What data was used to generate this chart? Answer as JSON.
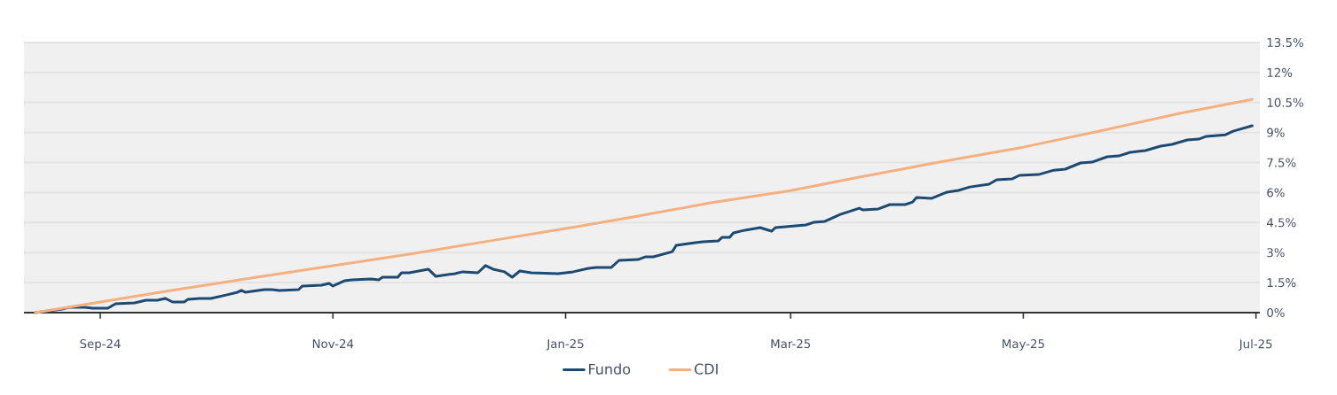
{
  "chart_data": {
    "type": "line",
    "xlim": [
      "2024-08-12",
      "2025-07-02"
    ],
    "ylim": [
      0,
      13.5
    ],
    "xticks": [
      {
        "value": "2024-09-01",
        "label": "Sep-24"
      },
      {
        "value": "2024-11-01",
        "label": "Nov-24"
      },
      {
        "value": "2025-01-01",
        "label": "Jan-25"
      },
      {
        "value": "2025-03-01",
        "label": "Mar-25"
      },
      {
        "value": "2025-05-01",
        "label": "May-25"
      },
      {
        "value": "2025-07-01",
        "label": "Jul-25"
      }
    ],
    "yticks": [
      {
        "value": 0,
        "label": "0%"
      },
      {
        "value": 1.5,
        "label": "1.5%"
      },
      {
        "value": 3,
        "label": "3%"
      },
      {
        "value": 4.5,
        "label": "4.5%"
      },
      {
        "value": 6,
        "label": "6%"
      },
      {
        "value": 7.5,
        "label": "7.5%"
      },
      {
        "value": 9,
        "label": "9%"
      },
      {
        "value": 10.5,
        "label": "10.5%"
      },
      {
        "value": 12,
        "label": "12%"
      },
      {
        "value": 13.5,
        "label": "13.5%"
      }
    ],
    "grid": "y",
    "legend": "bottom",
    "marker": "none",
    "line_style": "solid",
    "series": [
      {
        "name": "Fundo",
        "color": "#1d4a72",
        "x": [
          "2024-08-15",
          "2024-08-22",
          "2024-08-24",
          "2024-08-28",
          "2024-08-30",
          "2024-09-03",
          "2024-09-05",
          "2024-09-10",
          "2024-09-11",
          "2024-09-13",
          "2024-09-16",
          "2024-09-18",
          "2024-09-20",
          "2024-09-23",
          "2024-09-24",
          "2024-09-27",
          "2024-09-30",
          "2024-10-04",
          "2024-10-07",
          "2024-10-08",
          "2024-10-09",
          "2024-10-14",
          "2024-10-16",
          "2024-10-18",
          "2024-10-23",
          "2024-10-24",
          "2024-10-29",
          "2024-10-31",
          "2024-11-01",
          "2024-11-04",
          "2024-11-06",
          "2024-11-11",
          "2024-11-13",
          "2024-11-14",
          "2024-11-18",
          "2024-11-19",
          "2024-11-21",
          "2024-11-26",
          "2024-11-28",
          "2024-12-03",
          "2024-12-05",
          "2024-12-09",
          "2024-12-11",
          "2024-12-13",
          "2024-12-16",
          "2024-12-18",
          "2024-12-20",
          "2024-12-23",
          "2024-12-30",
          "2025-01-03",
          "2025-01-07",
          "2025-01-09",
          "2025-01-13",
          "2025-01-15",
          "2025-01-20",
          "2025-01-22",
          "2025-01-24",
          "2025-01-29",
          "2025-01-30",
          "2025-02-04",
          "2025-02-06",
          "2025-02-10",
          "2025-02-11",
          "2025-02-13",
          "2025-02-14",
          "2025-02-17",
          "2025-02-21",
          "2025-02-24",
          "2025-02-25",
          "2025-03-05",
          "2025-03-07",
          "2025-03-10",
          "2025-03-14",
          "2025-03-19",
          "2025-03-20",
          "2025-03-24",
          "2025-03-27",
          "2025-03-31",
          "2025-04-02",
          "2025-04-03",
          "2025-04-07",
          "2025-04-11",
          "2025-04-14",
          "2025-04-17",
          "2025-04-22",
          "2025-04-24",
          "2025-04-28",
          "2025-04-30",
          "2025-05-05",
          "2025-05-09",
          "2025-05-12",
          "2025-05-16",
          "2025-05-19",
          "2025-05-23",
          "2025-05-26",
          "2025-05-29",
          "2025-06-02",
          "2025-06-06",
          "2025-06-09",
          "2025-06-13",
          "2025-06-16",
          "2025-06-18",
          "2025-06-23",
          "2025-06-25",
          "2025-06-30"
        ],
        "values": [
          0,
          0.18,
          0.27,
          0.27,
          0.22,
          0.22,
          0.44,
          0.49,
          0.53,
          0.62,
          0.62,
          0.71,
          0.53,
          0.53,
          0.66,
          0.71,
          0.71,
          0.88,
          1.02,
          1.11,
          1.02,
          1.15,
          1.15,
          1.11,
          1.15,
          1.33,
          1.37,
          1.46,
          1.33,
          1.59,
          1.64,
          1.68,
          1.64,
          1.77,
          1.77,
          1.99,
          1.99,
          2.17,
          1.81,
          1.95,
          2.04,
          1.99,
          2.35,
          2.17,
          2.04,
          1.77,
          2.08,
          1.99,
          1.95,
          2.04,
          2.21,
          2.26,
          2.26,
          2.61,
          2.65,
          2.79,
          2.79,
          3.05,
          3.36,
          3.5,
          3.54,
          3.58,
          3.76,
          3.76,
          3.98,
          4.12,
          4.25,
          4.07,
          4.25,
          4.38,
          4.51,
          4.56,
          4.91,
          5.22,
          5.13,
          5.18,
          5.4,
          5.4,
          5.53,
          5.75,
          5.71,
          6.02,
          6.11,
          6.28,
          6.42,
          6.64,
          6.68,
          6.86,
          6.9,
          7.12,
          7.17,
          7.48,
          7.52,
          7.79,
          7.83,
          8.01,
          8.1,
          8.32,
          8.41,
          8.63,
          8.67,
          8.81,
          8.89,
          9.07,
          9.34
        ]
      },
      {
        "name": "CDI",
        "color": "#f5b07f",
        "x": [
          "2024-08-15",
          "2024-09-01",
          "2024-09-21",
          "2024-10-12",
          "2024-11-01",
          "2024-11-21",
          "2024-12-12",
          "2025-01-01",
          "2025-01-20",
          "2025-02-08",
          "2025-03-01",
          "2025-03-19",
          "2025-04-09",
          "2025-05-01",
          "2025-05-21",
          "2025-06-11",
          "2025-06-30"
        ],
        "values": [
          0,
          0.53,
          1.15,
          1.77,
          2.35,
          2.92,
          3.58,
          4.2,
          4.82,
          5.49,
          6.1,
          6.77,
          7.52,
          8.27,
          9.07,
          9.96,
          10.66
        ]
      }
    ]
  }
}
